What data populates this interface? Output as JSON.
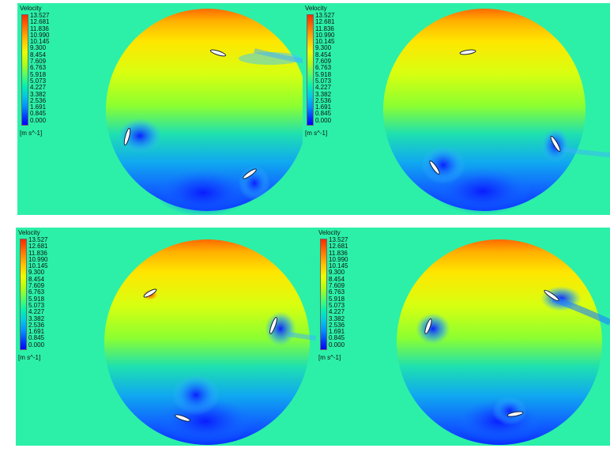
{
  "legend": {
    "title": "Velocity",
    "unit": "[m s^-1]",
    "ticks": [
      "13.527",
      "12.681",
      "11.836",
      "10.990",
      "10.145",
      "9.300",
      "8.454",
      "7.609",
      "6.763",
      "5.918",
      "5.073",
      "4.227",
      "3.382",
      "2.536",
      "1.691",
      "0.845",
      "0.000"
    ]
  },
  "colors": {
    "background": "#2cf0a8",
    "high": "#ff3c00",
    "mid_high": "#ffd600",
    "mid": "#9cff2a",
    "low": "#1e90ff",
    "min": "#0000ff"
  },
  "panels": [
    {
      "id": "panel-top-left",
      "blades": [
        "upper-right-blade",
        "left-blade",
        "lower-right-blade"
      ]
    },
    {
      "id": "panel-top-right",
      "blades": [
        "top-blade",
        "right-blade",
        "lower-left-blade"
      ]
    },
    {
      "id": "panel-bottom-left",
      "blades": [
        "upper-left-blade",
        "right-blade",
        "bottom-blade"
      ]
    },
    {
      "id": "panel-bottom-right",
      "blades": [
        "right-blade",
        "left-blade",
        "bottom-blade"
      ]
    }
  ]
}
